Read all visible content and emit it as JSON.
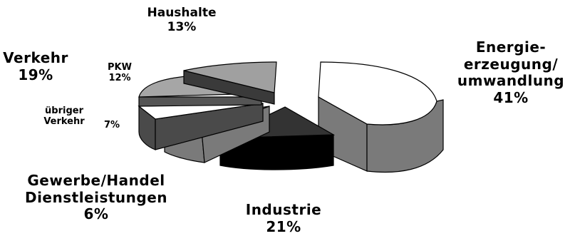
{
  "chart_data": {
    "type": "pie",
    "style": "3d-exploded",
    "slices": [
      {
        "key": "energie",
        "label_lines": [
          "Energie-",
          "erzeugung/",
          "umwandlung"
        ],
        "value_label": "41%",
        "value": 41,
        "top_color": "#ffffff",
        "side_color": "#7a7a7a"
      },
      {
        "key": "industrie",
        "label_lines": [
          "Industrie"
        ],
        "value_label": "21%",
        "value": 21,
        "top_color": "#333333",
        "side_color": "#000000"
      },
      {
        "key": "gewerbe",
        "label_lines": [
          "Gewerbe/Handel",
          "Dienstleistungen"
        ],
        "value_label": "6%",
        "value": 6,
        "top_color": "#ffffff",
        "side_color": "#7a7a7a"
      },
      {
        "key": "uebriger_verkehr",
        "label_lines": [
          "übriger",
          "Verkehr"
        ],
        "value_label": "7%",
        "value": 7,
        "top_color": "#ffffff",
        "side_color": "#4a4a4a"
      },
      {
        "key": "pkw",
        "label_lines": [
          "PKW"
        ],
        "value_label": "12%",
        "value": 12,
        "top_color": "#a6a6a6",
        "side_color": "#555555"
      },
      {
        "key": "haushalte",
        "label_lines": [
          "Haushalte"
        ],
        "value_label": "13%",
        "value": 13,
        "top_color": "#a0a0a0",
        "side_color": "#3a3a3a"
      }
    ],
    "group_labels": [
      {
        "key": "verkehr",
        "label_lines": [
          "Verkehr"
        ],
        "value_label": "19%",
        "value": 19
      }
    ]
  }
}
